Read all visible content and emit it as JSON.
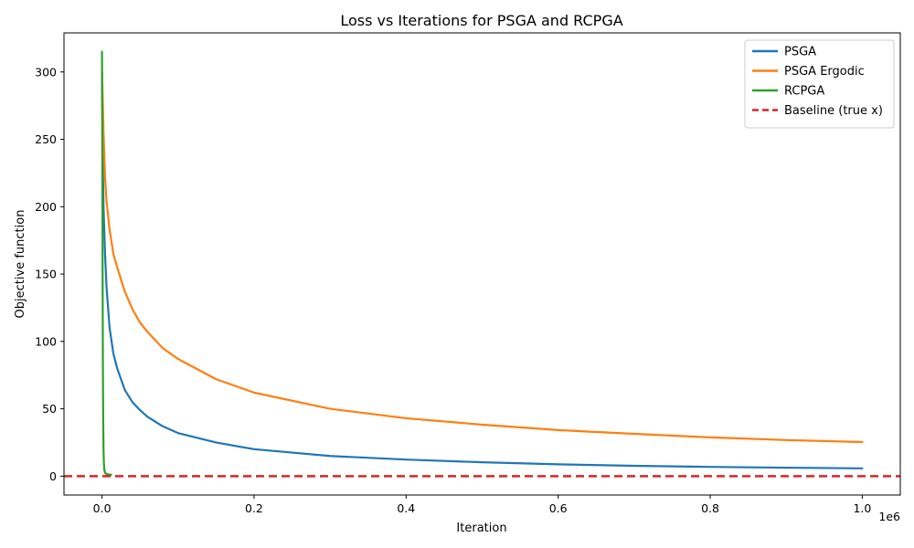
{
  "chart_data": {
    "type": "line",
    "title": "Loss vs Iterations for PSGA and RCPGA",
    "xlabel": "Iteration",
    "ylabel": "Objective function",
    "x_offset_label": "1e6",
    "xlim": [
      -0.05,
      1.05
    ],
    "ylim": [
      -14,
      329
    ],
    "x_ticks": [
      0.0,
      0.2,
      0.4,
      0.6,
      0.8,
      1.0
    ],
    "x_tick_labels": [
      "0.0",
      "0.2",
      "0.4",
      "0.6",
      "0.8",
      "1.0"
    ],
    "y_ticks": [
      0,
      50,
      100,
      150,
      200,
      250,
      300
    ],
    "y_tick_labels": [
      "0",
      "50",
      "100",
      "150",
      "200",
      "250",
      "300"
    ],
    "grid": false,
    "legend_position": "top-right",
    "series": [
      {
        "name": "PSGA",
        "color": "#1f77b4",
        "style": "solid",
        "x": [
          0.0,
          0.0005,
          0.001,
          0.002,
          0.004,
          0.006,
          0.01,
          0.015,
          0.02,
          0.03,
          0.04,
          0.05,
          0.06,
          0.08,
          0.1,
          0.15,
          0.2,
          0.3,
          0.4,
          0.5,
          0.6,
          0.7,
          0.8,
          0.9,
          1.0
        ],
        "y": [
          300,
          270,
          240,
          200,
          165,
          140,
          110,
          91,
          80,
          64,
          55,
          49,
          44,
          37,
          32,
          25,
          20,
          15,
          12.3,
          10.3,
          8.8,
          7.7,
          6.9,
          6.3,
          5.8
        ]
      },
      {
        "name": "PSGA Ergodic",
        "color": "#ff7f0e",
        "style": "solid",
        "x": [
          0.0,
          0.001,
          0.002,
          0.004,
          0.006,
          0.01,
          0.015,
          0.02,
          0.03,
          0.04,
          0.05,
          0.06,
          0.08,
          0.1,
          0.15,
          0.2,
          0.3,
          0.4,
          0.5,
          0.6,
          0.7,
          0.8,
          0.9,
          1.0
        ],
        "y": [
          300,
          280,
          255,
          222,
          204,
          183,
          165,
          155,
          137,
          124,
          114,
          107,
          95,
          87,
          72,
          62,
          50,
          43,
          38.2,
          34.2,
          31.4,
          28.8,
          26.8,
          25.3
        ]
      },
      {
        "name": "RCPGA",
        "color": "#2ca02c",
        "style": "solid",
        "x": [
          0.0,
          0.0004,
          0.0008,
          0.0012,
          0.0016,
          0.002,
          0.0025,
          0.003,
          0.004,
          0.006,
          0.01,
          0.012
        ],
        "y": [
          315,
          250,
          150,
          80,
          40,
          20,
          10,
          5,
          2.5,
          1.5,
          1.2,
          1.0
        ]
      },
      {
        "name": "Baseline (true x)",
        "color": "#d62728",
        "style": "dashed",
        "x": [
          -0.05,
          1.05
        ],
        "y": [
          0,
          0
        ]
      }
    ]
  }
}
